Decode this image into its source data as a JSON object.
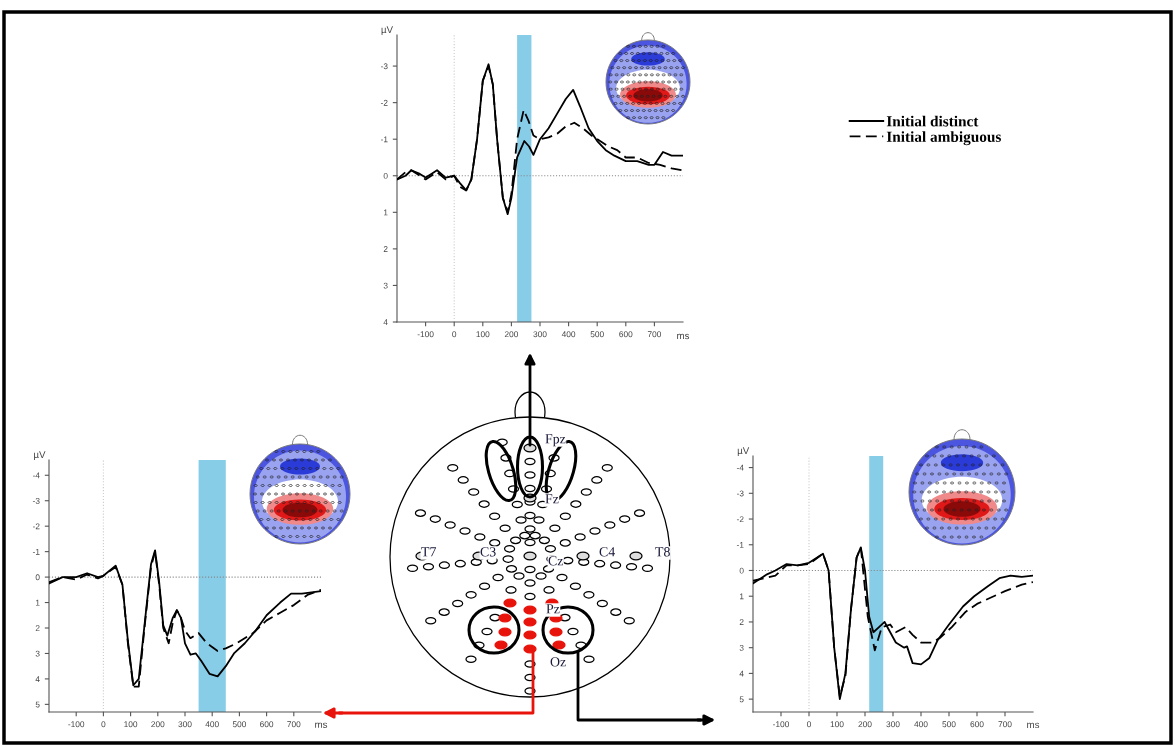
{
  "chart_data": [
    {
      "type": "line",
      "xlabel": "ms",
      "ylabel": "µV",
      "xlim": [
        -200,
        800
      ],
      "ylim": [
        4,
        -3.85
      ],
      "xticks": [
        -100,
        0,
        100,
        200,
        300,
        400,
        500,
        600,
        700
      ],
      "yticks": [
        -3,
        -2,
        -1,
        0,
        1,
        2,
        3,
        4
      ],
      "grid": false,
      "legend": "top right",
      "series": [
        {
          "name": "Initial distinct",
          "color": "#000000",
          "line_style": "solid",
          "x": [
            -200,
            -170,
            -150,
            -120,
            -100,
            -80,
            -60,
            -30,
            0,
            20,
            42,
            60,
            80,
            100,
            120,
            135,
            150,
            170,
            187,
            200,
            220,
            245,
            262,
            277,
            300,
            330,
            360,
            390,
            416,
            440,
            470,
            500,
            530,
            560,
            600,
            640,
            680,
            700,
            730,
            760,
            800
          ],
          "values": [
            0.1,
            0.0,
            -0.15,
            -0.05,
            0.05,
            -0.05,
            -0.15,
            0.05,
            0.0,
            0.2,
            0.4,
            0.1,
            -1.0,
            -2.6,
            -3.05,
            -2.5,
            -1.0,
            0.6,
            1.05,
            0.6,
            -0.5,
            -0.95,
            -0.8,
            -0.57,
            -1.0,
            -1.3,
            -1.7,
            -2.1,
            -2.35,
            -1.9,
            -1.3,
            -0.95,
            -0.7,
            -0.55,
            -0.4,
            -0.4,
            -0.3,
            -0.3,
            -0.65,
            -0.55,
            -0.55
          ]
        },
        {
          "name": "Initial ambiguous",
          "color": "#000000",
          "line_style": "dashed",
          "x": [
            -200,
            -170,
            -150,
            -120,
            -100,
            -80,
            -60,
            -30,
            0,
            20,
            42,
            60,
            80,
            100,
            120,
            135,
            150,
            170,
            187,
            200,
            220,
            243,
            260,
            277,
            300,
            330,
            360,
            390,
            420,
            450,
            480,
            510,
            540,
            570,
            600,
            640,
            680,
            720,
            760,
            800
          ],
          "values": [
            0.1,
            -0.1,
            -0.15,
            0.0,
            0.1,
            0.0,
            -0.1,
            0.1,
            0.0,
            0.3,
            0.4,
            0.1,
            -1.0,
            -2.6,
            -3.0,
            -2.5,
            -1.0,
            0.6,
            1.0,
            0.5,
            -1.0,
            -1.8,
            -1.5,
            -1.1,
            -1.0,
            -1.05,
            -1.15,
            -1.35,
            -1.45,
            -1.3,
            -1.1,
            -0.95,
            -0.8,
            -0.7,
            -0.5,
            -0.5,
            -0.35,
            -0.3,
            -0.2,
            -0.15
          ]
        }
      ],
      "bands": [
        {
          "axis": "x",
          "from": 220,
          "to": 270,
          "color": "#87cde8"
        }
      ],
      "ref_lines": [
        {
          "axis": "y",
          "value": 0,
          "color": "#888888",
          "line_style": "dotted"
        },
        {
          "axis": "x",
          "value": 0,
          "color": "#cccccc",
          "line_style": "dotted"
        }
      ]
    },
    {
      "type": "line",
      "xlabel": "ms",
      "ylabel": "µV",
      "xlim": [
        -200,
        800
      ],
      "ylim": [
        5.3,
        -4.6
      ],
      "xticks": [
        -100,
        0,
        100,
        200,
        300,
        400,
        500,
        600,
        700
      ],
      "yticks": [
        -4,
        -3,
        -2,
        -1,
        0,
        1,
        2,
        3,
        4,
        5
      ],
      "grid": false,
      "series": [
        {
          "color": "#000000",
          "line_style": "solid",
          "x": [
            -200,
            -150,
            -100,
            -60,
            -20,
            0,
            45,
            70,
            90,
            110,
            130,
            150,
            175,
            190,
            205,
            220,
            235,
            255,
            270,
            285,
            300,
            320,
            340,
            360,
            390,
            420,
            450,
            480,
            520,
            560,
            600,
            650,
            690,
            730,
            800
          ],
          "values": [
            0.25,
            0.0,
            0.0,
            -0.15,
            0.0,
            -0.05,
            -0.45,
            0.3,
            2.5,
            4.25,
            4.0,
            2.0,
            -0.5,
            -1.05,
            0.2,
            1.9,
            2.3,
            1.6,
            1.3,
            1.6,
            2.6,
            3.05,
            3.0,
            3.3,
            3.8,
            3.9,
            3.5,
            3.0,
            2.6,
            2.1,
            1.5,
            1.0,
            0.65,
            0.65,
            0.55
          ]
        },
        {
          "color": "#000000",
          "line_style": "dashed",
          "x": [
            -200,
            -150,
            -100,
            -60,
            -20,
            0,
            45,
            70,
            90,
            110,
            130,
            150,
            175,
            190,
            205,
            220,
            240,
            255,
            270,
            285,
            300,
            320,
            350,
            380,
            420,
            450,
            490,
            550,
            600,
            650,
            700,
            750,
            800
          ],
          "values": [
            0.2,
            0.0,
            0.1,
            -0.1,
            0.05,
            -0.05,
            -0.4,
            0.3,
            2.6,
            4.3,
            4.3,
            2.1,
            -0.4,
            -1.0,
            0.3,
            2.0,
            2.6,
            1.8,
            1.3,
            1.6,
            2.1,
            2.4,
            2.2,
            2.6,
            2.9,
            2.8,
            2.6,
            2.2,
            1.7,
            1.4,
            1.1,
            0.7,
            0.5
          ]
        }
      ],
      "bands": [
        {
          "axis": "x",
          "from": 350,
          "to": 450,
          "color": "#87cde8"
        }
      ],
      "ref_lines": [
        {
          "axis": "y",
          "value": 0,
          "color": "#888888",
          "line_style": "dotted"
        },
        {
          "axis": "x",
          "value": 0,
          "color": "#cccccc",
          "line_style": "dotted"
        }
      ]
    },
    {
      "type": "other",
      "annotations": [
        "Fpz",
        "Fz",
        "T7",
        "C3",
        "Cz",
        "C4",
        "T8",
        "Pz",
        "Oz"
      ]
    },
    {
      "type": "line",
      "xlabel": "ms",
      "ylabel": "µV",
      "xlim": [
        -200,
        800
      ],
      "ylim": [
        5.5,
        -4.45
      ],
      "xticks": [
        -100,
        0,
        100,
        200,
        300,
        400,
        500,
        600,
        700
      ],
      "yticks": [
        -4,
        -3,
        -2,
        -1,
        0,
        1,
        2,
        3,
        4,
        5
      ],
      "grid": false,
      "series": [
        {
          "color": "#000000",
          "line_style": "solid",
          "x": [
            -200,
            -150,
            -120,
            -80,
            -40,
            0,
            50,
            70,
            90,
            110,
            130,
            150,
            170,
            185,
            200,
            215,
            230,
            250,
            270,
            290,
            310,
            340,
            350,
            370,
            400,
            430,
            460,
            500,
            550,
            590,
            640,
            680,
            720,
            760,
            800
          ],
          "values": [
            0.5,
            0.15,
            0.0,
            -0.25,
            -0.2,
            -0.3,
            -0.65,
            0.0,
            3.0,
            5.0,
            4.0,
            1.5,
            -0.5,
            -0.9,
            0.0,
            1.8,
            2.4,
            2.2,
            2.0,
            2.4,
            2.8,
            3.0,
            2.95,
            3.6,
            3.65,
            3.4,
            2.7,
            2.1,
            1.4,
            1.0,
            0.6,
            0.3,
            0.2,
            0.25,
            0.2
          ]
        },
        {
          "color": "#000000",
          "line_style": "dashed",
          "x": [
            -200,
            -120,
            -80,
            -40,
            0,
            50,
            70,
            90,
            110,
            130,
            150,
            170,
            185,
            210,
            235,
            260,
            290,
            310,
            345,
            370,
            400,
            440,
            470,
            510,
            560,
            600,
            650,
            700,
            760,
            800
          ],
          "values": [
            0.4,
            0.2,
            -0.2,
            -0.2,
            -0.25,
            -0.65,
            0.0,
            3.0,
            4.9,
            4.1,
            1.5,
            -0.5,
            -0.9,
            1.8,
            3.1,
            2.2,
            2.1,
            2.4,
            2.2,
            2.5,
            2.8,
            2.8,
            2.6,
            2.2,
            1.6,
            1.3,
            1.05,
            0.8,
            0.55,
            0.45
          ]
        }
      ],
      "bands": [
        {
          "axis": "x",
          "from": 215,
          "to": 265,
          "color": "#87cde8"
        }
      ],
      "ref_lines": [
        {
          "axis": "y",
          "value": 0,
          "color": "#888888",
          "line_style": "dotted"
        },
        {
          "axis": "x",
          "value": 0,
          "color": "#cccccc",
          "line_style": "dotted"
        }
      ]
    }
  ]
}
